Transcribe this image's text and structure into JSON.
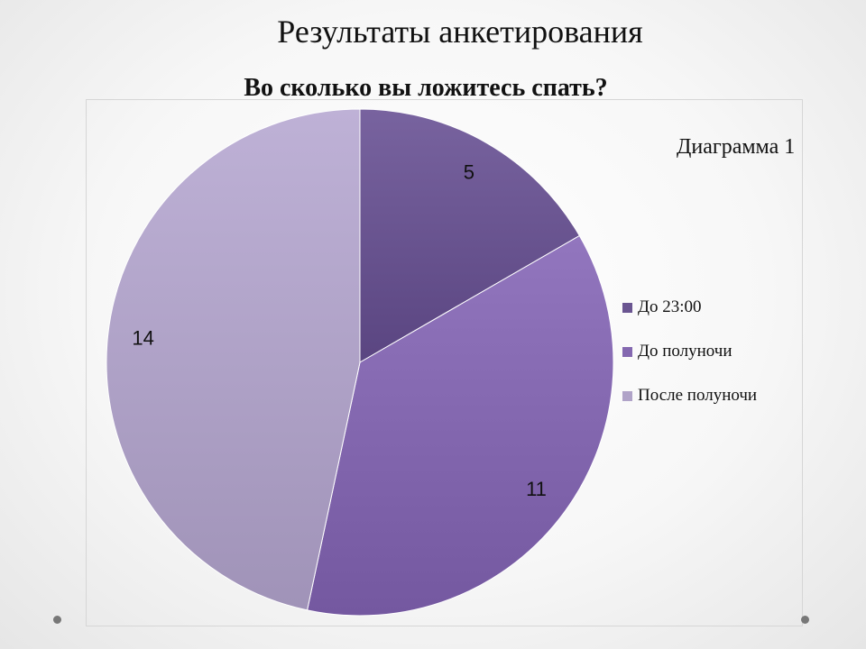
{
  "slide": {
    "title": "Результаты анкетирования"
  },
  "chart_data": {
    "type": "pie",
    "title": "Во сколько вы ложитесь спать?",
    "annotation": "Диаграмма 1",
    "categories": [
      "До 23:00",
      "До полуночи",
      "После полуночи"
    ],
    "values": [
      5,
      11,
      14
    ],
    "data_labels": [
      "5",
      "11",
      "14"
    ],
    "colors": [
      "#6a5591",
      "#8468b0",
      "#b0a3c8"
    ],
    "legend_position": "right"
  }
}
